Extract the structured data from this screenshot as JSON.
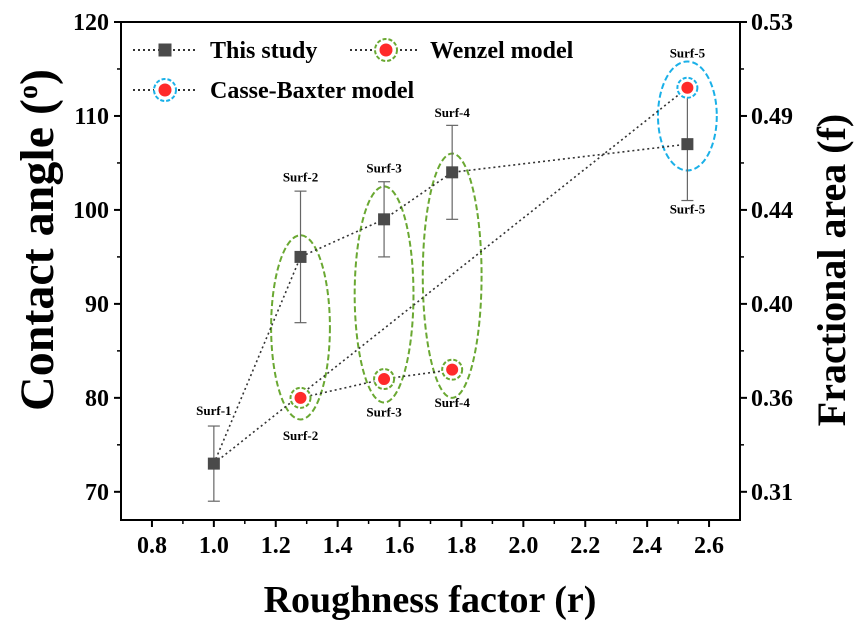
{
  "chart_data": {
    "type": "scatter",
    "xlabel": "Roughness factor (r)",
    "ylabel": "Contact angle (",
    "ylabel_sup": "o",
    "ylabel_tail": ")",
    "y2label": "Fractional area (f)",
    "xlim": [
      0.7,
      2.7
    ],
    "ylim": [
      67,
      120
    ],
    "x_ticks": [
      "0.8",
      "1.0",
      "1.2",
      "1.4",
      "1.6",
      "1.8",
      "2.0",
      "2.2",
      "2.4",
      "2.6"
    ],
    "y_ticks": [
      "70",
      "80",
      "90",
      "100",
      "110",
      "120"
    ],
    "y2_ticks": [
      {
        "label": "0.31",
        "at": 70
      },
      {
        "label": "0.36",
        "at": 80
      },
      {
        "label": "0.40",
        "at": 90
      },
      {
        "label": "0.44",
        "at": 100
      },
      {
        "label": "0.49",
        "at": 110
      },
      {
        "label": "0.53",
        "at": 120
      }
    ],
    "series": [
      {
        "name": "This study",
        "marker": "square",
        "color": "#4a4a4a",
        "x": [
          1.0,
          1.28,
          1.55,
          1.77,
          2.53
        ],
        "y": [
          73,
          95,
          99,
          104,
          107
        ],
        "err": [
          4,
          7,
          4,
          5,
          6
        ]
      },
      {
        "name": "Wenzel model",
        "marker": "circle",
        "color": "#ff2a2a",
        "ring": "#6aa832",
        "x": [
          1.28,
          1.55,
          1.77
        ],
        "y": [
          80,
          82,
          83
        ]
      },
      {
        "name": "Casse-Baxter model",
        "marker": "circle",
        "color": "#ff2a2a",
        "ring": "#1ab0e8",
        "x": [
          1.0,
          2.53
        ],
        "y": [
          73,
          113
        ]
      }
    ],
    "annotations": [
      {
        "text": "Surf-1",
        "x": 1.0,
        "y": 78.2
      },
      {
        "text": "Surf-2",
        "x": 1.28,
        "y": 103
      },
      {
        "text": "Surf-2",
        "x": 1.28,
        "y": 75.5
      },
      {
        "text": "Surf-3",
        "x": 1.55,
        "y": 104
      },
      {
        "text": "Surf-3",
        "x": 1.55,
        "y": 78
      },
      {
        "text": "Surf-4",
        "x": 1.77,
        "y": 109.9
      },
      {
        "text": "Surf-4",
        "x": 1.77,
        "y": 79
      },
      {
        "text": "Surf-5",
        "x": 2.53,
        "y": 116.2
      },
      {
        "text": "Surf-5",
        "x": 2.53,
        "y": 99.6
      }
    ],
    "groups": [
      {
        "color": "#6aa832",
        "cx": 1.28,
        "cy": 87.5,
        "rx": 0.095,
        "ry": 9.8
      },
      {
        "color": "#6aa832",
        "cx": 1.55,
        "cy": 91,
        "rx": 0.095,
        "ry": 11.5
      },
      {
        "color": "#6aa832",
        "cx": 1.77,
        "cy": 93,
        "rx": 0.095,
        "ry": 13
      },
      {
        "color": "#1ab0e8",
        "cx": 2.53,
        "cy": 110,
        "rx": 0.095,
        "ry": 5.8
      }
    ],
    "legend_position": "top-left"
  }
}
